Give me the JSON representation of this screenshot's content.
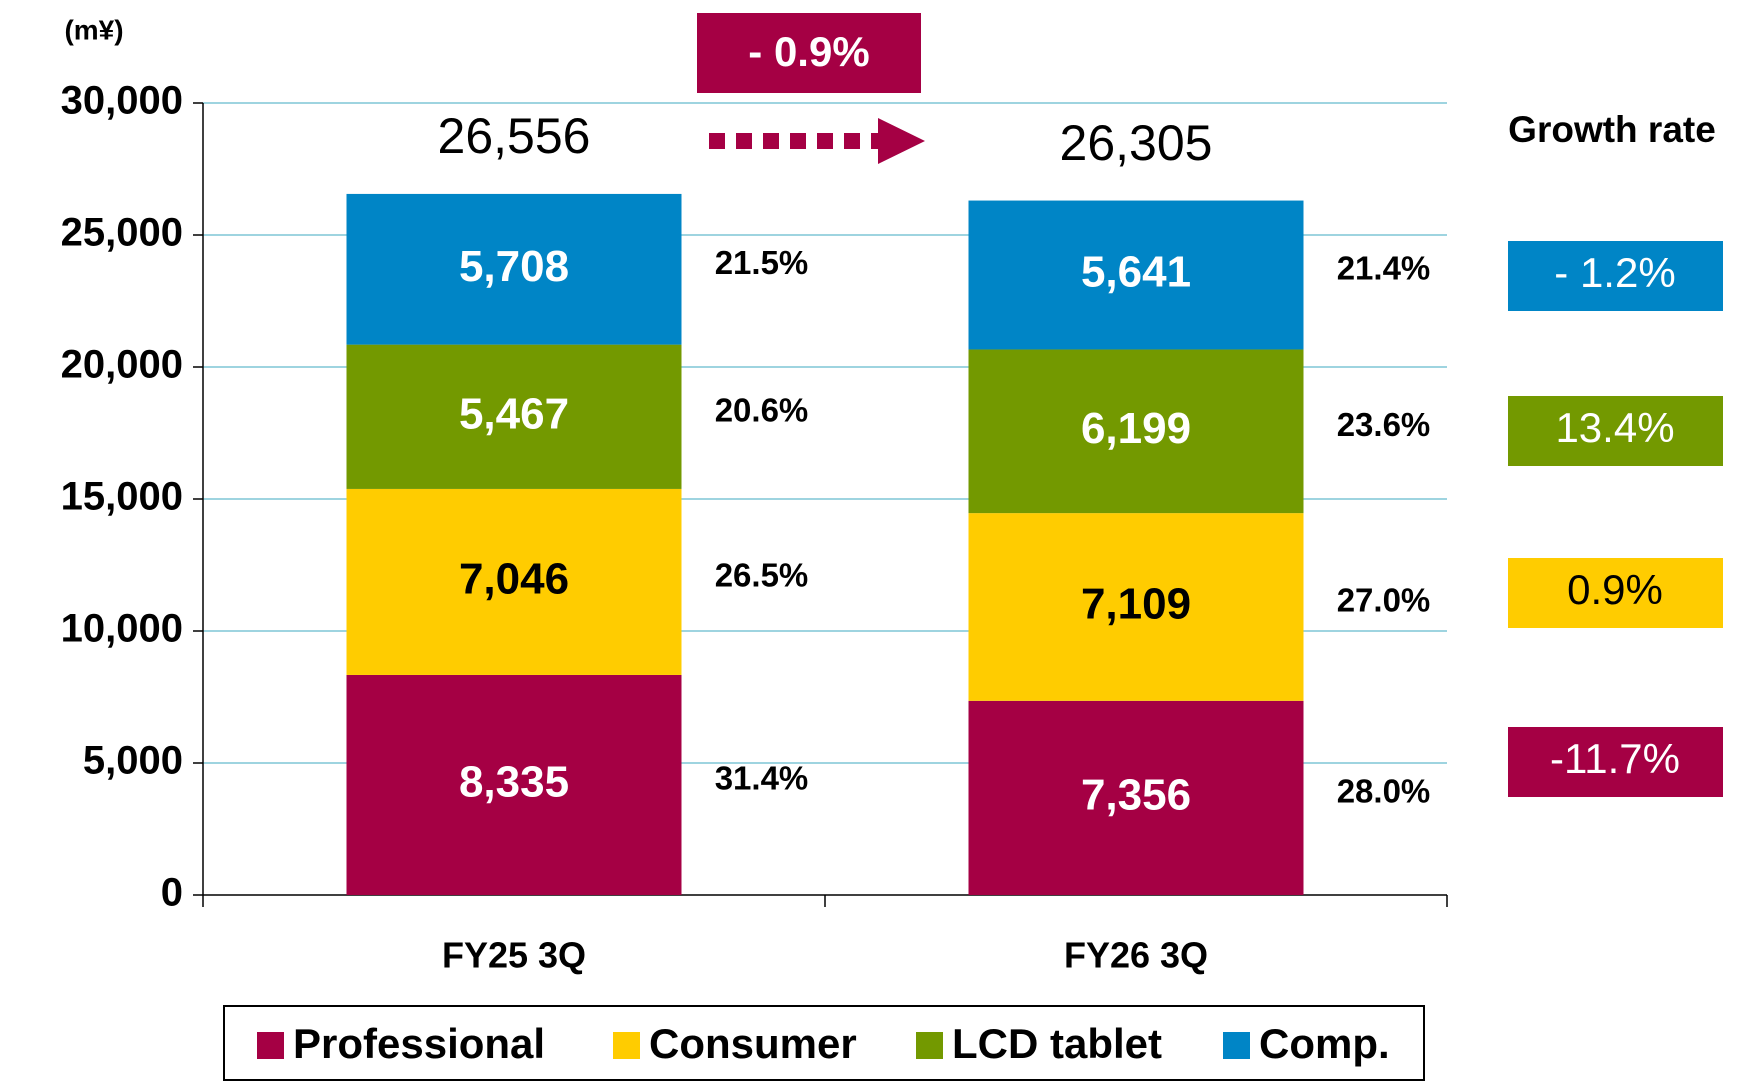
{
  "chart_data": {
    "type": "stacked_bar",
    "unit_label": "(m¥)",
    "change_label": "- 0.9%",
    "growth_title": "Growth rate",
    "categories": [
      "FY25 3Q",
      "FY26 3Q"
    ],
    "totals": [
      26556,
      26305
    ],
    "total_labels": [
      "26,556",
      "26,305"
    ],
    "series": [
      {
        "name": "Professional",
        "color": "#a50044",
        "label_color": "#ffffff",
        "values": [
          8335,
          7356
        ],
        "value_labels": [
          "8,335",
          "7,356"
        ],
        "share_labels": [
          "31.4%",
          "28.0%"
        ],
        "growth_label": "-11.7%"
      },
      {
        "name": "Consumer",
        "color": "#ffcc00",
        "label_color": "#000000",
        "values": [
          7046,
          7109
        ],
        "value_labels": [
          "7,046",
          "7,109"
        ],
        "share_labels": [
          "26.5%",
          "27.0%"
        ],
        "growth_label": "0.9%"
      },
      {
        "name": "LCD tablet",
        "color": "#739900",
        "label_color": "#ffffff",
        "values": [
          5467,
          6199
        ],
        "value_labels": [
          "5,467",
          "6,199"
        ],
        "share_labels": [
          "20.6%",
          "23.6%"
        ],
        "growth_label": "13.4%"
      },
      {
        "name": "Comp.",
        "color": "#0085c6",
        "label_color": "#ffffff",
        "values": [
          5708,
          5641
        ],
        "value_labels": [
          "5,708",
          "5,641"
        ],
        "share_labels": [
          "21.5%",
          "21.4%"
        ],
        "growth_label": "- 1.2%"
      }
    ],
    "ylim": [
      0,
      30000
    ],
    "yticks": [
      0,
      {
        "value": 5000,
        "label": "5,000"
      },
      {
        "value": 10000,
        "label": "10,000"
      },
      {
        "value": 15000,
        "label": "15,000"
      },
      {
        "value": 20000,
        "label": "20,000"
      },
      {
        "value": 25000,
        "label": "25,000"
      },
      {
        "value": 30000,
        "label": "30,000"
      }
    ],
    "grid": true,
    "grid_color": "#7fc6d6"
  }
}
